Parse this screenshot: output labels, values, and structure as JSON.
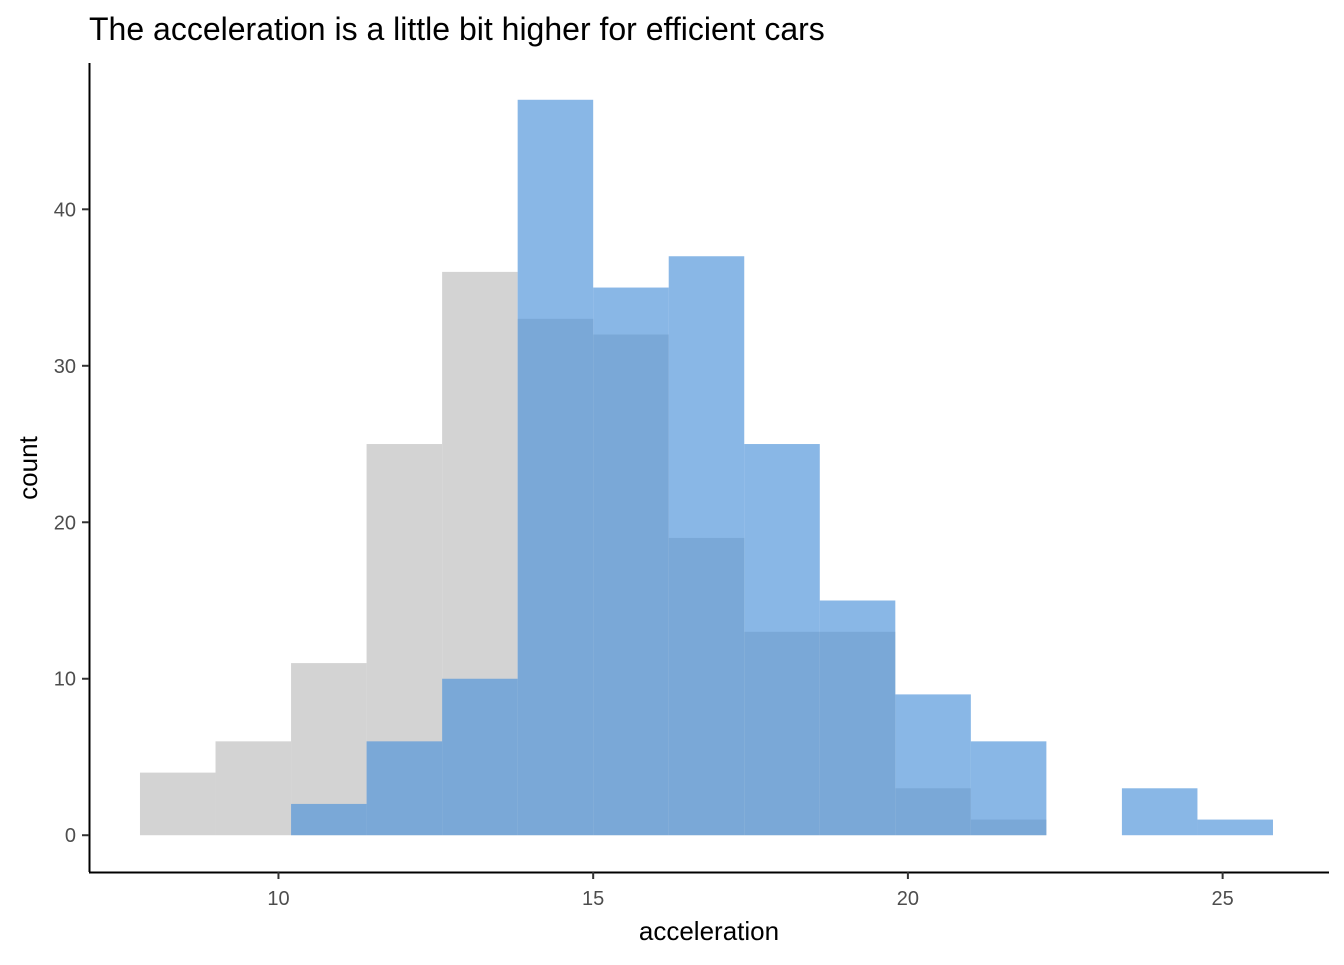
{
  "chart_data": {
    "type": "histogram",
    "title": "The acceleration is a little bit higher for efficient cars",
    "xlabel": "acceleration",
    "ylabel": "count",
    "xlim": [
      6.99,
      26.69
    ],
    "ylim": [
      -2.35,
      49.35
    ],
    "x_ticks": [
      10,
      15,
      20,
      25
    ],
    "y_ticks": [
      0,
      10,
      20,
      30,
      40
    ],
    "grid": false,
    "legend": "none",
    "bin_edges": [
      7.8,
      9.0,
      10.2,
      11.4,
      12.6,
      13.8,
      15.0,
      16.2,
      17.4,
      18.6,
      19.8,
      21.0,
      22.2,
      23.4,
      24.6,
      25.8
    ],
    "series": [
      {
        "color": "#d3d3d3",
        "opacity": 1.0,
        "values": [
          4,
          6,
          11,
          25,
          36,
          33,
          32,
          19,
          13,
          13,
          3,
          1,
          0,
          0,
          0
        ]
      },
      {
        "color": "#4a90d9",
        "opacity": 0.65,
        "values": [
          0,
          0,
          2,
          6,
          10,
          47,
          35,
          37,
          25,
          15,
          9,
          6,
          0,
          3,
          1
        ]
      }
    ]
  }
}
